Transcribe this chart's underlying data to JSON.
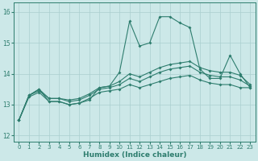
{
  "x": [
    0,
    1,
    2,
    3,
    4,
    5,
    6,
    7,
    8,
    9,
    10,
    11,
    12,
    13,
    14,
    15,
    16,
    17,
    18,
    19,
    20,
    21,
    22,
    23
  ],
  "line_main": [
    12.5,
    13.3,
    13.5,
    13.1,
    13.1,
    13.0,
    13.05,
    13.15,
    13.55,
    13.6,
    14.05,
    15.7,
    14.9,
    15.0,
    15.85,
    15.85,
    15.65,
    15.5,
    14.15,
    13.85,
    13.85,
    14.6,
    14.0,
    13.55
  ],
  "line_top": [
    12.5,
    13.3,
    13.5,
    13.2,
    13.2,
    13.15,
    13.2,
    13.35,
    13.55,
    13.6,
    13.75,
    14.0,
    13.9,
    14.05,
    14.2,
    14.3,
    14.35,
    14.4,
    14.2,
    14.1,
    14.05,
    14.05,
    13.95,
    13.65
  ],
  "line_mid": [
    12.5,
    13.3,
    13.45,
    13.2,
    13.2,
    13.1,
    13.15,
    13.3,
    13.5,
    13.55,
    13.65,
    13.85,
    13.75,
    13.9,
    14.05,
    14.15,
    14.2,
    14.25,
    14.05,
    13.95,
    13.9,
    13.9,
    13.8,
    13.6
  ],
  "line_bot": [
    12.5,
    13.25,
    13.4,
    13.1,
    13.1,
    13.0,
    13.05,
    13.2,
    13.4,
    13.45,
    13.5,
    13.65,
    13.55,
    13.65,
    13.75,
    13.85,
    13.9,
    13.95,
    13.8,
    13.7,
    13.65,
    13.65,
    13.55,
    13.55
  ],
  "line_color": "#2e7d6e",
  "bg_color": "#cce8e8",
  "grid_color": "#aacfcf",
  "xlabel": "Humidex (Indice chaleur)",
  "ylim": [
    11.8,
    16.3
  ],
  "xlim": [
    -0.5,
    23.5
  ],
  "yticks": [
    12,
    13,
    14,
    15,
    16
  ],
  "xticks": [
    0,
    1,
    2,
    3,
    4,
    5,
    6,
    7,
    8,
    9,
    10,
    11,
    12,
    13,
    14,
    15,
    16,
    17,
    18,
    19,
    20,
    21,
    22,
    23
  ]
}
